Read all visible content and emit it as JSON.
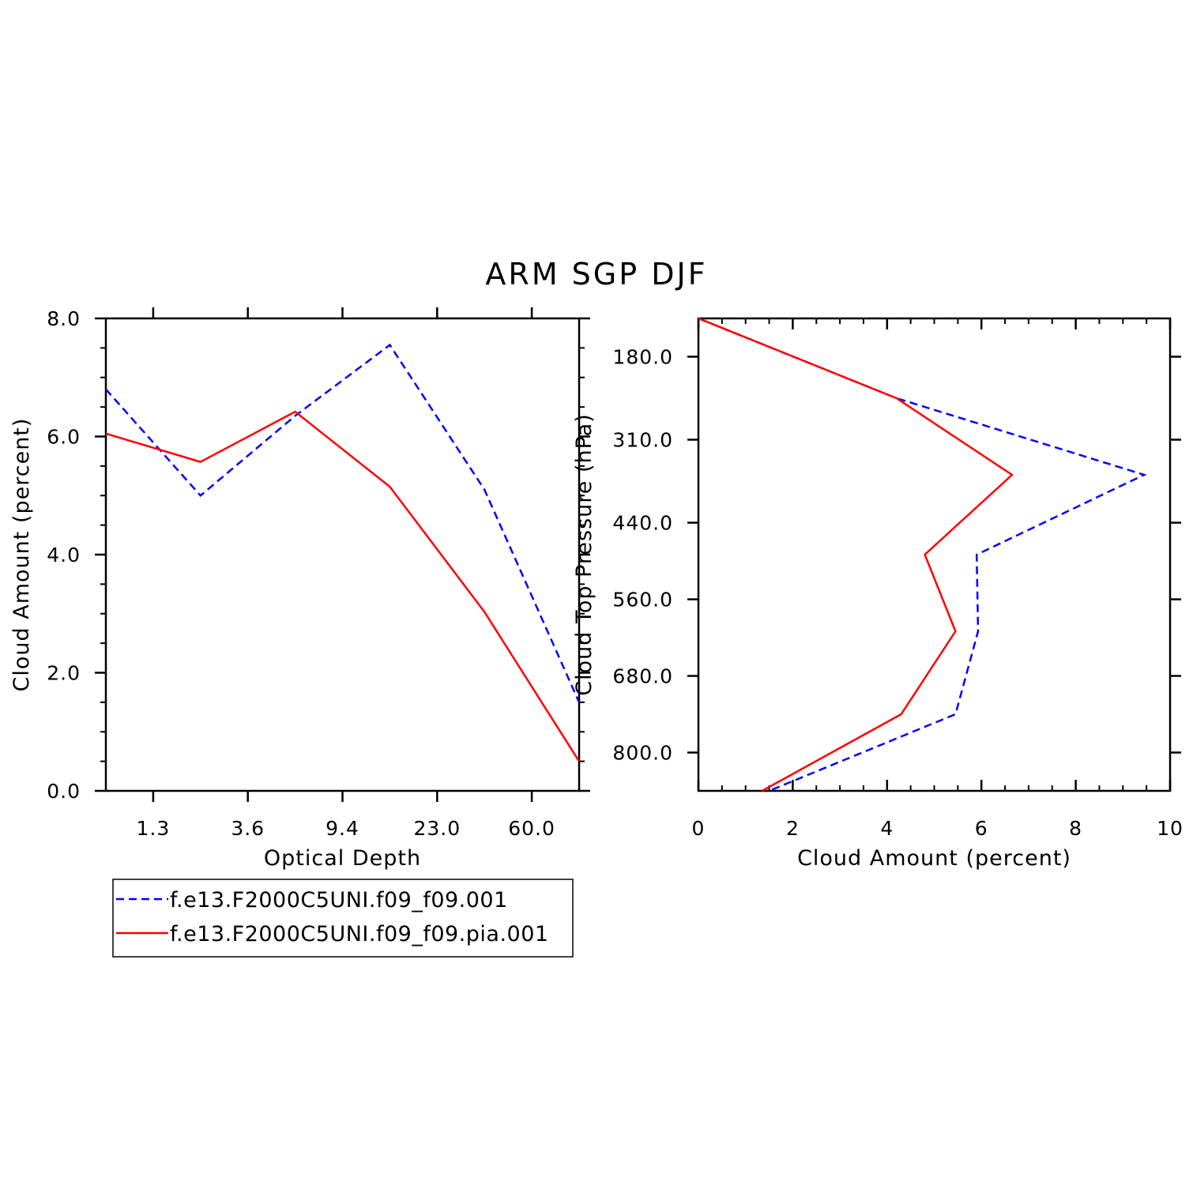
{
  "title": "ARM SGP DJF",
  "colors": {
    "series_a": "#0000ff",
    "series_b": "#ff0000",
    "axis": "#000000"
  },
  "legend": {
    "placement": "bottom-left",
    "entries": [
      {
        "label": "f.e13.F2000C5UNI.f09_f09.001",
        "style": "dashed",
        "color": "#0000ff"
      },
      {
        "label": "f.e13.F2000C5UNI.f09_f09.pia.001",
        "style": "solid",
        "color": "#ff0000"
      }
    ]
  },
  "chart_data": [
    {
      "type": "line",
      "xlabel": "Optical Depth",
      "ylabel": "Cloud Amount (percent)",
      "x_tick_labels": [
        "1.3",
        "3.6",
        "9.4",
        "23.0",
        "60.0"
      ],
      "x_tick_positions": [
        1,
        3,
        5,
        7,
        9
      ],
      "xlim": [
        0,
        10
      ],
      "ylim": [
        0,
        8
      ],
      "y_tick_labels": [
        "0.0",
        "2.0",
        "4.0",
        "6.0",
        "8.0"
      ],
      "y_ticks": [
        0,
        2,
        4,
        6,
        8
      ],
      "x": [
        0,
        2,
        4,
        6,
        8,
        10
      ],
      "series": [
        {
          "name": "f.e13.F2000C5UNI.f09_f09.001",
          "values": [
            6.8,
            5.0,
            6.35,
            7.55,
            5.1,
            1.5
          ]
        },
        {
          "name": "f.e13.F2000C5UNI.f09_f09.pia.001",
          "values": [
            6.05,
            5.57,
            6.42,
            5.15,
            3.03,
            0.5
          ]
        }
      ]
    },
    {
      "type": "line",
      "orientation": "horizontal-profile",
      "xlabel": "Cloud Amount (percent)",
      "ylabel": "Cloud Top Pressure (hPa)",
      "xlim": [
        0,
        10
      ],
      "x_ticks": [
        0,
        2,
        4,
        6,
        8,
        10
      ],
      "x_tick_labels": [
        "0",
        "2",
        "4",
        "6",
        "8",
        "10"
      ],
      "ylim": [
        120,
        860
      ],
      "y_ticks": [
        180,
        310,
        440,
        560,
        680,
        800
      ],
      "y_tick_labels": [
        "180.0",
        "310.0",
        "440.0",
        "560.0",
        "680.0",
        "800.0"
      ],
      "pressure": [
        120,
        245,
        365,
        490,
        610,
        740,
        860
      ],
      "series": [
        {
          "name": "f.e13.F2000C5UNI.f09_f09.001",
          "values": [
            0.0,
            4.2,
            9.45,
            5.9,
            5.93,
            5.45,
            1.5
          ]
        },
        {
          "name": "f.e13.F2000C5UNI.f09_f09.pia.001",
          "values": [
            0.0,
            4.2,
            6.65,
            4.8,
            5.45,
            4.3,
            1.35
          ]
        }
      ]
    }
  ]
}
